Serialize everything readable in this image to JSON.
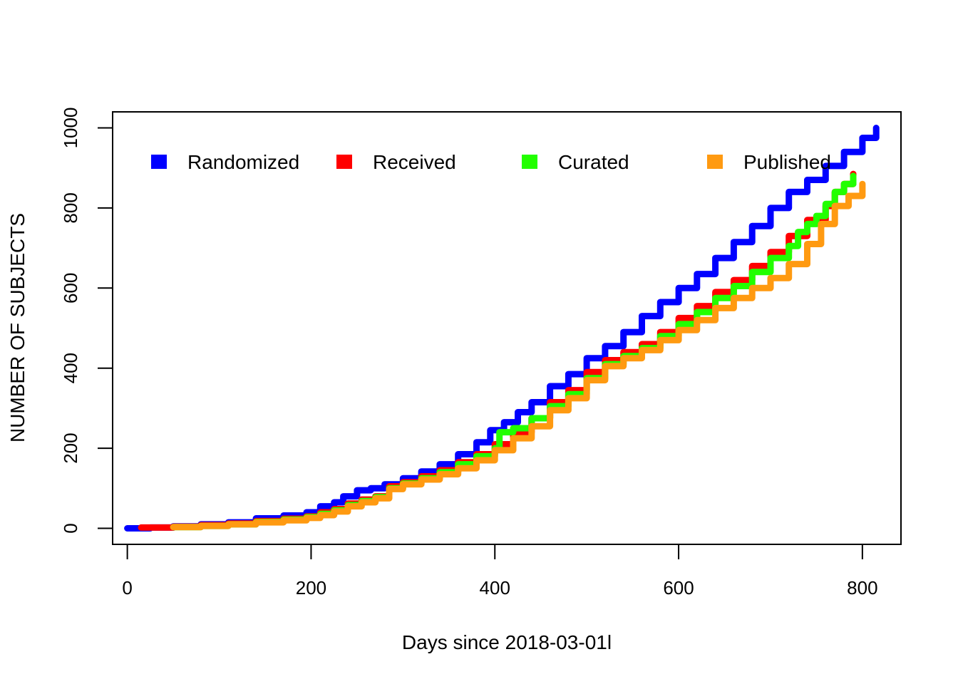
{
  "chart_data": {
    "type": "line",
    "title": "",
    "xlabel": "Days since 2018-03-01l",
    "ylabel": "NUMBER OF SUBJECTS",
    "xlim": [
      -16,
      842
    ],
    "ylim": [
      -40,
      1040
    ],
    "xticks": [
      0,
      200,
      400,
      600,
      800
    ],
    "yticks": [
      0,
      200,
      400,
      600,
      800,
      1000
    ],
    "grid": false,
    "legend_position": "top",
    "series": [
      {
        "name": "Randomized",
        "color": "#0000FF",
        "x": [
          0,
          25,
          50,
          80,
          110,
          140,
          170,
          195,
          210,
          225,
          235,
          250,
          265,
          280,
          300,
          320,
          340,
          360,
          380,
          395,
          410,
          425,
          440,
          460,
          480,
          500,
          520,
          540,
          560,
          580,
          600,
          620,
          640,
          660,
          680,
          700,
          720,
          740,
          760,
          780,
          800,
          815
        ],
        "y": [
          0,
          2,
          5,
          10,
          15,
          25,
          32,
          40,
          55,
          65,
          80,
          95,
          100,
          110,
          125,
          142,
          160,
          185,
          215,
          245,
          265,
          290,
          315,
          355,
          385,
          425,
          455,
          490,
          530,
          565,
          600,
          635,
          675,
          715,
          755,
          800,
          840,
          870,
          905,
          940,
          975,
          1000
        ]
      },
      {
        "name": "Received",
        "color": "#FF0000",
        "x": [
          15,
          50,
          80,
          110,
          140,
          170,
          195,
          210,
          225,
          240,
          255,
          270,
          285,
          300,
          320,
          340,
          360,
          380,
          400,
          420,
          440,
          460,
          480,
          500,
          520,
          540,
          560,
          580,
          600,
          620,
          640,
          660,
          680,
          700,
          720,
          740,
          760,
          770,
          780,
          790
        ],
        "y": [
          2,
          4,
          8,
          12,
          18,
          24,
          30,
          40,
          48,
          62,
          72,
          80,
          105,
          115,
          130,
          145,
          165,
          185,
          210,
          240,
          275,
          315,
          345,
          390,
          420,
          440,
          460,
          490,
          525,
          555,
          590,
          620,
          655,
          690,
          730,
          770,
          805,
          840,
          860,
          885
        ]
      },
      {
        "name": "Curated",
        "color": "#22FF00",
        "x": [
          50,
          80,
          110,
          140,
          170,
          195,
          210,
          225,
          240,
          255,
          270,
          285,
          300,
          320,
          340,
          360,
          380,
          400,
          405,
          420,
          440,
          460,
          480,
          500,
          520,
          540,
          560,
          580,
          600,
          620,
          640,
          660,
          680,
          700,
          720,
          730,
          740,
          750,
          760,
          770,
          780,
          790
        ],
        "y": [
          3,
          6,
          10,
          16,
          22,
          28,
          36,
          45,
          58,
          68,
          78,
          100,
          112,
          125,
          140,
          160,
          180,
          200,
          240,
          250,
          275,
          305,
          335,
          375,
          410,
          430,
          450,
          480,
          510,
          540,
          575,
          605,
          640,
          675,
          705,
          740,
          760,
          780,
          810,
          840,
          860,
          880
        ]
      },
      {
        "name": "Published",
        "color": "#FF9A11",
        "x": [
          50,
          80,
          110,
          140,
          170,
          195,
          210,
          225,
          240,
          255,
          270,
          285,
          300,
          320,
          340,
          360,
          380,
          400,
          420,
          440,
          460,
          480,
          500,
          520,
          540,
          560,
          580,
          600,
          620,
          640,
          660,
          680,
          700,
          720,
          740,
          755,
          770,
          785,
          800
        ],
        "y": [
          3,
          6,
          10,
          15,
          20,
          26,
          33,
          42,
          55,
          65,
          75,
          98,
          110,
          122,
          135,
          150,
          170,
          195,
          225,
          255,
          295,
          325,
          370,
          405,
          425,
          445,
          470,
          495,
          520,
          550,
          575,
          600,
          625,
          660,
          710,
          760,
          805,
          830,
          860
        ]
      }
    ]
  }
}
